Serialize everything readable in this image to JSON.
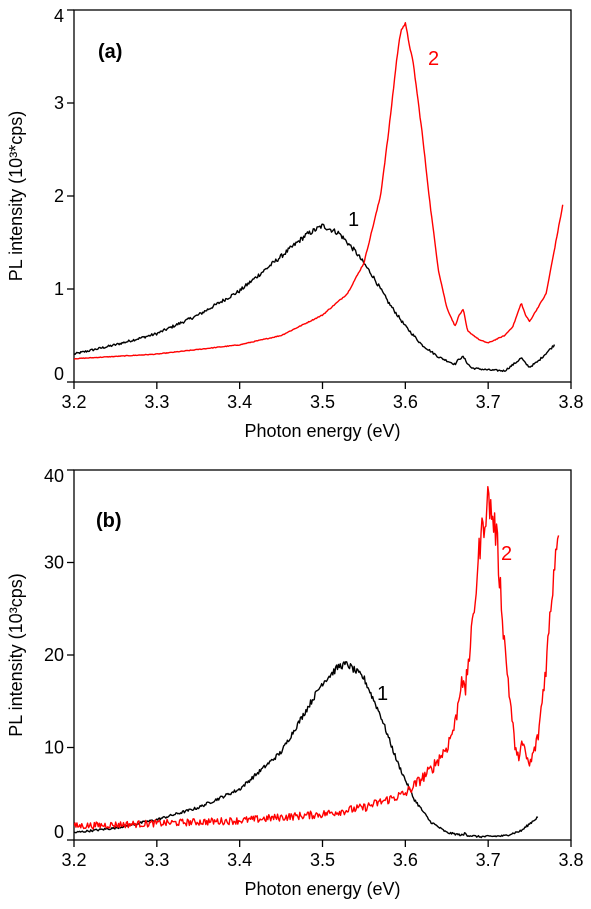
{
  "chart_data": [
    {
      "type": "line",
      "panel_label": "(a)",
      "xlabel": "Photon energy (eV)",
      "ylabel": "PL intensity (10³*cps)",
      "xlim": [
        3.2,
        3.8
      ],
      "ylim": [
        0,
        4
      ],
      "x_ticks": [
        "3.2",
        "3.3",
        "3.4",
        "3.5",
        "3.6",
        "3.7",
        "3.8"
      ],
      "y_ticks": [
        "0",
        "1",
        "2",
        "3",
        "4"
      ],
      "series": [
        {
          "name": "1",
          "color": "#000000",
          "noise": 0.04,
          "x": [
            3.2,
            3.25,
            3.3,
            3.35,
            3.4,
            3.45,
            3.48,
            3.5,
            3.52,
            3.54,
            3.56,
            3.58,
            3.6,
            3.62,
            3.64,
            3.66,
            3.665,
            3.67,
            3.675,
            3.68,
            3.7,
            3.72,
            3.735,
            3.74,
            3.745,
            3.75,
            3.76,
            3.78
          ],
          "y": [
            0.3,
            0.4,
            0.52,
            0.72,
            0.98,
            1.35,
            1.58,
            1.68,
            1.6,
            1.4,
            1.15,
            0.85,
            0.6,
            0.4,
            0.27,
            0.19,
            0.25,
            0.27,
            0.2,
            0.15,
            0.13,
            0.12,
            0.22,
            0.26,
            0.2,
            0.16,
            0.22,
            0.4
          ]
        },
        {
          "name": "2",
          "color": "#ff0000",
          "noise": 0.012,
          "x": [
            3.2,
            3.3,
            3.4,
            3.45,
            3.5,
            3.53,
            3.55,
            3.57,
            3.58,
            3.59,
            3.595,
            3.6,
            3.61,
            3.62,
            3.63,
            3.64,
            3.65,
            3.66,
            3.665,
            3.67,
            3.675,
            3.69,
            3.7,
            3.72,
            3.73,
            3.74,
            3.745,
            3.75,
            3.77,
            3.79
          ],
          "y": [
            0.25,
            0.3,
            0.4,
            0.5,
            0.72,
            0.95,
            1.28,
            2.0,
            2.7,
            3.5,
            3.8,
            3.85,
            3.4,
            2.7,
            1.9,
            1.2,
            0.8,
            0.6,
            0.72,
            0.78,
            0.55,
            0.45,
            0.42,
            0.5,
            0.6,
            0.85,
            0.72,
            0.65,
            0.95,
            1.9
          ]
        }
      ]
    },
    {
      "type": "line",
      "panel_label": "(b)",
      "xlabel": "Photon energy (eV)",
      "ylabel": "PL intensity (10³cps)",
      "xlim": [
        3.2,
        3.8
      ],
      "ylim": [
        0,
        40
      ],
      "x_ticks": [
        "3.2",
        "3.3",
        "3.4",
        "3.5",
        "3.6",
        "3.7",
        "3.8"
      ],
      "y_ticks": [
        "0",
        "10",
        "20",
        "30",
        "40"
      ],
      "series": [
        {
          "name": "1",
          "color": "#000000",
          "noise": 0.05,
          "x": [
            3.2,
            3.25,
            3.3,
            3.35,
            3.4,
            3.45,
            3.48,
            3.5,
            3.52,
            3.53,
            3.55,
            3.57,
            3.59,
            3.61,
            3.63,
            3.65,
            3.67,
            3.672,
            3.675,
            3.69,
            3.72,
            3.74,
            3.76
          ],
          "y": [
            0.8,
            1.3,
            2.2,
            3.5,
            5.5,
            9.5,
            14.0,
            17.0,
            18.8,
            19.0,
            17.5,
            13.5,
            8.5,
            4.5,
            2.0,
            0.8,
            0.5,
            0.8,
            0.5,
            0.35,
            0.45,
            1.0,
            2.5
          ]
        },
        {
          "name": "2",
          "color": "#ff0000",
          "noise": 0.15,
          "x": [
            3.2,
            3.3,
            3.4,
            3.5,
            3.55,
            3.6,
            3.63,
            3.65,
            3.66,
            3.665,
            3.668,
            3.672,
            3.675,
            3.68,
            3.69,
            3.7,
            3.71,
            3.72,
            3.73,
            3.735,
            3.74,
            3.75,
            3.76,
            3.77,
            3.78,
            3.785
          ],
          "y": [
            1.5,
            1.8,
            2.1,
            2.8,
            3.5,
            5.0,
            7.5,
            10.0,
            12.5,
            15.5,
            18.0,
            15.5,
            18.5,
            22.0,
            32.0,
            37.0,
            33.0,
            21.0,
            12.0,
            8.5,
            10.5,
            8.0,
            11.0,
            19.0,
            30.0,
            34.5
          ]
        }
      ]
    }
  ]
}
